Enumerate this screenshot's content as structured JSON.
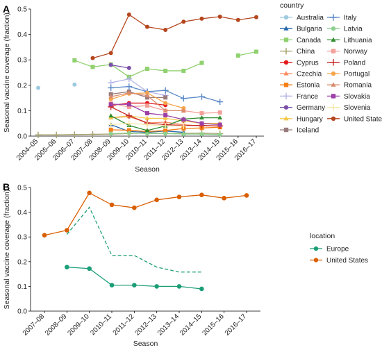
{
  "chart_data": [
    {
      "panel": "A",
      "type": "line",
      "title": "",
      "xlabel": "Season",
      "ylabel": "Seasonal vaccine coverage (fraction)",
      "ylim": [
        0,
        0.5
      ],
      "yticks": [
        0.0,
        0.1,
        0.2,
        0.3,
        0.4,
        0.5
      ],
      "categories": [
        "2004–05",
        "2005–06",
        "2006–07",
        "2007–08",
        "2008–09",
        "2009–10",
        "2010–11",
        "2011–12",
        "2012–13",
        "2013–14",
        "2014–15",
        "2015–16",
        "2016–17"
      ],
      "grid": false,
      "legend_title": "country",
      "legend_placement": "right",
      "series": [
        {
          "name": "Australia",
          "color": "#9ecae1",
          "marker": "circle",
          "values": [
            0.19,
            null,
            0.203,
            null,
            null,
            0.232,
            null,
            null,
            null,
            null,
            null,
            null,
            null
          ]
        },
        {
          "name": "Bulgaria",
          "color": "#2166ac",
          "marker": "triangle",
          "values": [
            null,
            null,
            null,
            null,
            0.045,
            0.018,
            0.015,
            0.02,
            0.015,
            null,
            null,
            null,
            null
          ]
        },
        {
          "name": "Canada",
          "color": "#8fd16e",
          "marker": "square",
          "values": [
            null,
            null,
            0.298,
            0.272,
            0.282,
            0.233,
            0.265,
            0.257,
            0.257,
            0.288,
            null,
            0.317,
            0.332
          ]
        },
        {
          "name": "China",
          "color": "#a6a06a",
          "marker": "plus",
          "values": [
            0.005,
            0.005,
            0.006,
            0.007,
            0.008,
            0.01,
            0.012,
            0.011,
            0.011,
            0.012,
            0.01,
            null,
            null
          ]
        },
        {
          "name": "Cyprus",
          "color": "#e31a1c",
          "marker": "circle",
          "values": [
            null,
            null,
            null,
            null,
            0.12,
            0.13,
            0.13,
            0.122,
            null,
            null,
            null,
            null,
            null
          ]
        },
        {
          "name": "Czechia",
          "color": "#fb8c60",
          "marker": "triangle",
          "values": [
            null,
            null,
            null,
            null,
            0.072,
            0.077,
            0.052,
            0.055,
            0.045,
            0.04,
            0.04,
            null,
            null
          ]
        },
        {
          "name": "Estonia",
          "color": "#f57f17",
          "marker": "square",
          "values": [
            null,
            null,
            null,
            null,
            0.025,
            0.023,
            0.018,
            0.022,
            0.03,
            0.032,
            0.035,
            null,
            null
          ]
        },
        {
          "name": "France",
          "color": "#b3b3e6",
          "marker": "plus",
          "values": [
            null,
            null,
            null,
            null,
            0.21,
            0.225,
            0.175,
            0.16,
            null,
            null,
            null,
            null,
            null
          ]
        },
        {
          "name": "Germany",
          "color": "#7b4fa8",
          "marker": "circle",
          "values": [
            null,
            null,
            null,
            null,
            0.28,
            0.268,
            null,
            null,
            null,
            null,
            null,
            null,
            null
          ]
        },
        {
          "name": "Hungary",
          "color": "#f2c84b",
          "marker": "triangle",
          "values": [
            null,
            null,
            null,
            null,
            0.073,
            0.08,
            0.07,
            0.07,
            0.06,
            0.05,
            0.05,
            null,
            null
          ]
        },
        {
          "name": "Iceland",
          "color": "#9a7b7b",
          "marker": "square",
          "values": [
            null,
            null,
            null,
            null,
            0.165,
            0.175,
            0.152,
            0.152,
            null,
            null,
            null,
            null,
            null
          ]
        },
        {
          "name": "Italy",
          "color": "#5a88c5",
          "marker": "plus",
          "values": [
            null,
            null,
            null,
            null,
            0.19,
            0.195,
            0.175,
            0.18,
            0.148,
            0.155,
            0.135,
            null,
            null
          ]
        },
        {
          "name": "Latvia",
          "color": "#8fcf8f",
          "marker": "circle",
          "values": [
            null,
            null,
            null,
            null,
            0.01,
            0.012,
            0.01,
            0.01,
            0.008,
            0.008,
            0.006,
            null,
            null
          ]
        },
        {
          "name": "Lithuania",
          "color": "#2e8b2e",
          "marker": "triangle",
          "values": [
            null,
            null,
            null,
            null,
            0.08,
            0.042,
            0.022,
            0.04,
            0.067,
            0.072,
            0.072,
            null,
            null
          ]
        },
        {
          "name": "Norway",
          "color": "#f4a09a",
          "marker": "square",
          "values": [
            null,
            null,
            null,
            null,
            0.128,
            0.115,
            0.12,
            0.1,
            0.1,
            0.09,
            0.093,
            null,
            null
          ]
        },
        {
          "name": "Poland",
          "color": "#c62828",
          "marker": "plus",
          "values": [
            null,
            null,
            null,
            null,
            0.115,
            0.08,
            0.052,
            0.045,
            0.042,
            0.042,
            0.04,
            null,
            null
          ]
        },
        {
          "name": "Portugal",
          "color": "#f6a44a",
          "marker": "circle",
          "values": [
            null,
            null,
            null,
            null,
            0.145,
            0.167,
            0.17,
            0.13,
            0.11,
            null,
            null,
            null,
            null
          ]
        },
        {
          "name": "Romania",
          "color": "#d98a6b",
          "marker": "triangle",
          "values": [
            null,
            null,
            null,
            null,
            0.155,
            0.17,
            0.16,
            0.1,
            0.1,
            null,
            null,
            null,
            null
          ]
        },
        {
          "name": "Slovakia",
          "color": "#9c3fa6",
          "marker": "square",
          "values": [
            null,
            null,
            null,
            null,
            0.125,
            0.125,
            0.09,
            0.082,
            0.065,
            0.05,
            0.045,
            null,
            null
          ]
        },
        {
          "name": "Slovenia",
          "color": "#f7e8a8",
          "marker": "plus",
          "values": [
            null,
            null,
            null,
            null,
            0.045,
            0.05,
            0.045,
            0.04,
            0.04,
            null,
            null,
            null,
            null
          ]
        },
        {
          "name": "United States",
          "color": "#b5461e",
          "marker": "circle",
          "values": [
            null,
            null,
            null,
            0.307,
            0.327,
            0.478,
            0.43,
            0.418,
            0.45,
            0.462,
            0.47,
            0.457,
            0.468
          ]
        }
      ]
    },
    {
      "panel": "B",
      "type": "line",
      "title": "",
      "xlabel": "Season",
      "ylabel": "Seasonal vaccine coverage (fraction)",
      "ylim": [
        0,
        0.5
      ],
      "yticks": [
        0.0,
        0.1,
        0.2,
        0.3,
        0.4,
        0.5
      ],
      "categories": [
        "2007–08",
        "2008–09",
        "2009–10",
        "2010–11",
        "2011–12",
        "2012–13",
        "2013–14",
        "2014–15",
        "2015–16",
        "2016–17"
      ],
      "grid": false,
      "legend_title": "location",
      "legend_placement": "right",
      "series": [
        {
          "name": "Europe",
          "color": "#1b9e77",
          "marker": "circle",
          "values": [
            null,
            0.178,
            0.172,
            0.105,
            0.105,
            0.1,
            0.1,
            0.09,
            null,
            null
          ]
        },
        {
          "name": "United States",
          "color": "#d95f02",
          "marker": "circle",
          "values": [
            0.307,
            0.327,
            0.478,
            0.43,
            0.418,
            0.45,
            0.462,
            0.47,
            0.457,
            0.468
          ]
        },
        {
          "name": "",
          "color": "#1b9e77",
          "marker": "none",
          "dashed": true,
          "values": [
            null,
            0.31,
            0.42,
            0.225,
            0.225,
            0.178,
            0.158,
            0.158,
            null,
            null
          ]
        }
      ]
    }
  ]
}
